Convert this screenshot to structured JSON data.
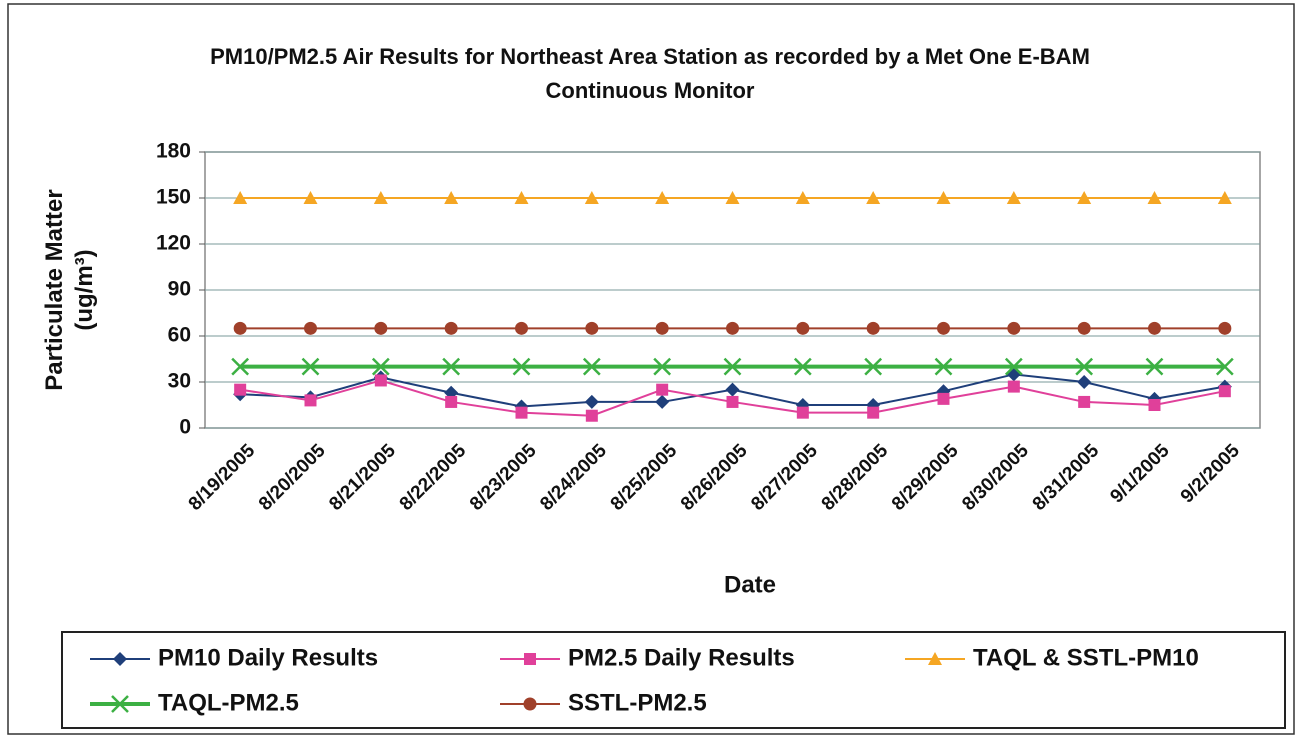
{
  "chart_data": {
    "type": "line",
    "title": "PM10/PM2.5 Air Results for Northeast Area Station as recorded by a Met One E-BAM Continuous Monitor",
    "xlabel": "Date",
    "ylabel": "Particulate Matter (ug/m³)",
    "categories": [
      "8/19/2005",
      "8/20/2005",
      "8/21/2005",
      "8/22/2005",
      "8/23/2005",
      "8/24/2005",
      "8/25/2005",
      "8/26/2005",
      "8/27/2005",
      "8/28/2005",
      "8/29/2005",
      "8/30/2005",
      "8/31/2005",
      "9/1/2005",
      "9/2/2005"
    ],
    "series": [
      {
        "name": "PM10 Daily Results",
        "color": "#1f3f7a",
        "marker": "diamond",
        "values": [
          22,
          20,
          33,
          23,
          14,
          17,
          17,
          25,
          15,
          15,
          24,
          35,
          30,
          19,
          27
        ]
      },
      {
        "name": "PM2.5 Daily Results",
        "color": "#e0409a",
        "marker": "square",
        "values": [
          25,
          18,
          31,
          17,
          10,
          8,
          25,
          17,
          10,
          10,
          19,
          27,
          17,
          15,
          24
        ]
      },
      {
        "name": "TAQL & SSTL-PM10",
        "color": "#f5a623",
        "marker": "triangle",
        "values": [
          150,
          150,
          150,
          150,
          150,
          150,
          150,
          150,
          150,
          150,
          150,
          150,
          150,
          150,
          150
        ]
      },
      {
        "name": "TAQL-PM2.5",
        "color": "#3cb043",
        "marker": "x",
        "values": [
          40,
          40,
          40,
          40,
          40,
          40,
          40,
          40,
          40,
          40,
          40,
          40,
          40,
          40,
          40
        ]
      },
      {
        "name": "SSTL-PM2.5",
        "color": "#a0402a",
        "marker": "circle",
        "values": [
          65,
          65,
          65,
          65,
          65,
          65,
          65,
          65,
          65,
          65,
          65,
          65,
          65,
          65,
          65
        ]
      }
    ],
    "ylim": [
      0,
      180
    ],
    "yticks": [
      0,
      30,
      60,
      90,
      120,
      150,
      180
    ],
    "grid": true,
    "legend": "bottom"
  }
}
